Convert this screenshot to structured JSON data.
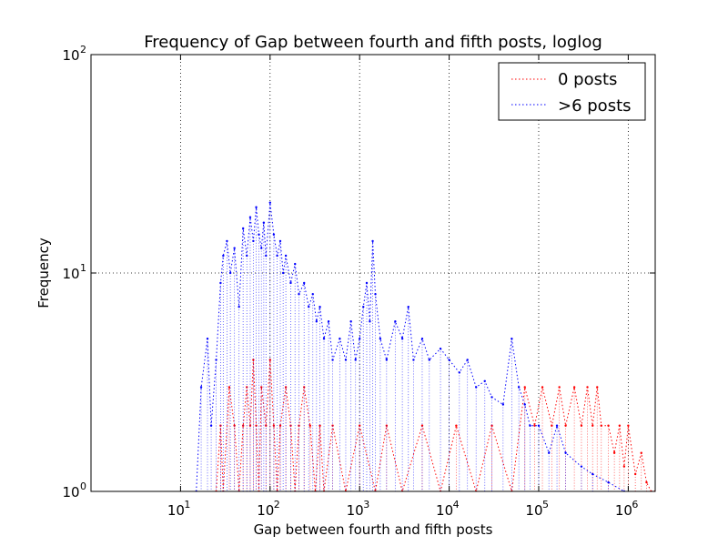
{
  "chart_data": {
    "type": "line",
    "title": "Frequency of Gap between fourth and fifth posts, loglog",
    "xlabel": "Gap between fourth and fifth posts",
    "ylabel": "Frequency",
    "xscale": "log",
    "yscale": "log",
    "xlim": [
      1,
      2000000
    ],
    "ylim": [
      1,
      100
    ],
    "grid": true,
    "legend_placement": "top-right",
    "x_ticks": [
      {
        "base": "10",
        "exp": "1",
        "value": 10
      },
      {
        "base": "10",
        "exp": "2",
        "value": 100
      },
      {
        "base": "10",
        "exp": "3",
        "value": 1000
      },
      {
        "base": "10",
        "exp": "4",
        "value": 10000
      },
      {
        "base": "10",
        "exp": "5",
        "value": 100000
      },
      {
        "base": "10",
        "exp": "6",
        "value": 1000000
      }
    ],
    "y_ticks": [
      {
        "base": "10",
        "exp": "0",
        "value": 1
      },
      {
        "base": "10",
        "exp": "1",
        "value": 10
      },
      {
        "base": "10",
        "exp": "2",
        "value": 100
      }
    ],
    "series": [
      {
        "name": "0 posts",
        "color": "#ff0000",
        "line_style": "dotted",
        "points": [
          [
            25,
            1
          ],
          [
            28,
            2
          ],
          [
            30,
            1
          ],
          [
            35,
            3
          ],
          [
            40,
            2
          ],
          [
            45,
            1
          ],
          [
            50,
            2
          ],
          [
            55,
            3
          ],
          [
            60,
            2
          ],
          [
            65,
            4
          ],
          [
            70,
            2
          ],
          [
            75,
            1
          ],
          [
            80,
            3
          ],
          [
            90,
            2
          ],
          [
            100,
            4
          ],
          [
            110,
            2
          ],
          [
            120,
            1
          ],
          [
            130,
            2
          ],
          [
            150,
            3
          ],
          [
            170,
            2
          ],
          [
            190,
            1
          ],
          [
            210,
            2
          ],
          [
            240,
            3
          ],
          [
            280,
            2
          ],
          [
            320,
            1
          ],
          [
            360,
            2
          ],
          [
            400,
            1
          ],
          [
            500,
            2
          ],
          [
            700,
            1
          ],
          [
            1000,
            2
          ],
          [
            1500,
            1
          ],
          [
            2000,
            2
          ],
          [
            3000,
            1
          ],
          [
            5000,
            2
          ],
          [
            8000,
            1
          ],
          [
            12000,
            2
          ],
          [
            20000,
            1
          ],
          [
            30000,
            2
          ],
          [
            50000,
            1
          ],
          [
            70000,
            3
          ],
          [
            90000,
            2
          ],
          [
            110000,
            3
          ],
          [
            140000,
            2
          ],
          [
            170000,
            3
          ],
          [
            200000,
            2
          ],
          [
            250000,
            3
          ],
          [
            300000,
            2
          ],
          [
            350000,
            3
          ],
          [
            400000,
            2
          ],
          [
            450000,
            3
          ],
          [
            500000,
            2
          ],
          [
            600000,
            2
          ],
          [
            700000,
            1.5
          ],
          [
            800000,
            2
          ],
          [
            900000,
            1.3
          ],
          [
            1000000,
            2
          ],
          [
            1200000,
            1.2
          ],
          [
            1400000,
            1.5
          ],
          [
            1600000,
            1.1
          ],
          [
            1800000,
            1
          ],
          [
            2000000,
            1
          ]
        ]
      },
      {
        "name": ">6 posts",
        "color": "#0000ff",
        "line_style": "dotted",
        "points": [
          [
            15,
            1
          ],
          [
            17,
            3
          ],
          [
            20,
            5
          ],
          [
            22,
            2
          ],
          [
            25,
            4
          ],
          [
            28,
            9
          ],
          [
            30,
            12
          ],
          [
            33,
            14
          ],
          [
            36,
            10
          ],
          [
            40,
            13
          ],
          [
            45,
            7
          ],
          [
            50,
            16
          ],
          [
            55,
            12
          ],
          [
            60,
            18
          ],
          [
            65,
            14
          ],
          [
            70,
            20
          ],
          [
            75,
            15
          ],
          [
            80,
            13
          ],
          [
            85,
            17
          ],
          [
            90,
            12
          ],
          [
            100,
            21
          ],
          [
            110,
            15
          ],
          [
            120,
            12
          ],
          [
            130,
            14
          ],
          [
            140,
            10
          ],
          [
            150,
            12
          ],
          [
            170,
            9
          ],
          [
            190,
            11
          ],
          [
            210,
            8
          ],
          [
            240,
            9
          ],
          [
            270,
            7
          ],
          [
            300,
            8
          ],
          [
            330,
            6
          ],
          [
            360,
            7
          ],
          [
            400,
            5
          ],
          [
            450,
            6
          ],
          [
            500,
            4
          ],
          [
            600,
            5
          ],
          [
            700,
            4
          ],
          [
            800,
            6
          ],
          [
            900,
            4
          ],
          [
            1000,
            5
          ],
          [
            1100,
            7
          ],
          [
            1200,
            9
          ],
          [
            1300,
            6
          ],
          [
            1400,
            14
          ],
          [
            1500,
            8
          ],
          [
            1700,
            5
          ],
          [
            2000,
            4
          ],
          [
            2500,
            6
          ],
          [
            3000,
            5
          ],
          [
            3500,
            7
          ],
          [
            4000,
            4
          ],
          [
            5000,
            5
          ],
          [
            6000,
            4
          ],
          [
            8000,
            4.5
          ],
          [
            10000,
            4
          ],
          [
            13000,
            3.5
          ],
          [
            16000,
            4
          ],
          [
            20000,
            3
          ],
          [
            25000,
            3.2
          ],
          [
            30000,
            2.7
          ],
          [
            40000,
            2.5
          ],
          [
            50000,
            5
          ],
          [
            60000,
            3
          ],
          [
            70000,
            2.5
          ],
          [
            80000,
            2
          ],
          [
            100000,
            2
          ],
          [
            130000,
            1.5
          ],
          [
            160000,
            2
          ],
          [
            200000,
            1.5
          ],
          [
            300000,
            1.3
          ],
          [
            400000,
            1.2
          ],
          [
            600000,
            1.1
          ],
          [
            900000,
            1
          ]
        ]
      }
    ]
  }
}
